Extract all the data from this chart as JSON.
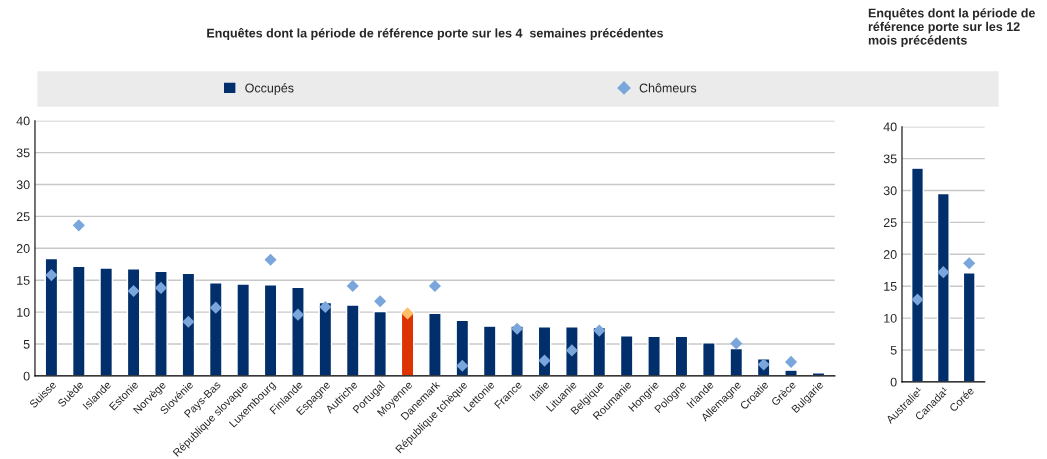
{
  "chart_data": [
    {
      "type": "bar",
      "title": "Enquêtes dont la période de référence porte sur les 4  semaines précédentes",
      "categories": [
        "Suisse",
        "Suède",
        "Islande",
        "Estonie",
        "Norvège",
        "Slovénie",
        "Pays-Bas",
        "République slovaque",
        "Luxembourg",
        "Finlande",
        "Espagne",
        "Autriche",
        "Portugal",
        "Moyenne",
        "Danemark",
        "République tchèque",
        "Lettonie",
        "France",
        "Italie",
        "Lituanie",
        "Belgique",
        "Roumanie",
        "Hongrie",
        "Pologne",
        "Irlande",
        "Allemagne",
        "Croatie",
        "Grèce",
        "Bulgarie"
      ],
      "series": [
        {
          "name": "Occupés",
          "type": "bar",
          "color": "#002f6c",
          "colors": [
            "#002f6c",
            "#002f6c",
            "#002f6c",
            "#002f6c",
            "#002f6c",
            "#002f6c",
            "#002f6c",
            "#002f6c",
            "#002f6c",
            "#002f6c",
            "#002f6c",
            "#002f6c",
            "#002f6c",
            "#dd3300",
            "#002f6c",
            "#002f6c",
            "#002f6c",
            "#002f6c",
            "#002f6c",
            "#002f6c",
            "#002f6c",
            "#002f6c",
            "#002f6c",
            "#002f6c",
            "#002f6c",
            "#002f6c",
            "#002f6c",
            "#002f6c",
            "#002f6c"
          ],
          "values": [
            18.4,
            17.2,
            16.9,
            16.8,
            16.4,
            16.1,
            14.6,
            14.4,
            14.3,
            13.9,
            11.5,
            11.1,
            10.1,
            10.0,
            9.8,
            8.7,
            7.8,
            7.8,
            7.7,
            7.7,
            7.6,
            6.3,
            6.2,
            6.2,
            5.2,
            4.3,
            2.7,
            0.9,
            0.5
          ]
        },
        {
          "name": "Chômeurs",
          "type": "scatter",
          "marker": "diamond",
          "color": "#7aa6db",
          "colors": [
            "#7aa6db",
            "#7aa6db",
            "#7aa6db",
            "#7aa6db",
            "#7aa6db",
            "#7aa6db",
            "#7aa6db",
            "#7aa6db",
            "#7aa6db",
            "#7aa6db",
            "#7aa6db",
            "#7aa6db",
            "#7aa6db",
            "#ffbf66",
            "#7aa6db",
            "#7aa6db",
            "#7aa6db",
            "#7aa6db",
            "#7aa6db",
            "#7aa6db",
            "#7aa6db",
            "#7aa6db",
            "#7aa6db",
            "#7aa6db",
            "#7aa6db",
            "#7aa6db",
            "#7aa6db",
            "#7aa6db",
            "#7aa6db"
          ],
          "values": [
            15.8,
            23.6,
            null,
            13.3,
            13.8,
            8.5,
            10.7,
            null,
            18.2,
            9.6,
            10.8,
            14.1,
            11.7,
            9.8,
            14.1,
            1.6,
            null,
            7.4,
            2.4,
            4.0,
            7.1,
            null,
            null,
            null,
            null,
            5.1,
            1.8,
            2.2,
            null
          ]
        }
      ],
      "ylim": [
        0,
        40
      ],
      "yticks": [
        0,
        5,
        10,
        15,
        20,
        25,
        30,
        35,
        40
      ],
      "grid": "y",
      "legend": "top"
    },
    {
      "type": "bar",
      "title": "Enquêtes dont la période de référence porte sur les 12 mois précédents",
      "categories": [
        "Australie¹",
        "Canada¹",
        "Corée"
      ],
      "series": [
        {
          "type": "bar",
          "color": "#002f6c",
          "values": [
            33.5,
            29.5,
            17.1
          ]
        },
        {
          "type": "scatter",
          "marker": "diamond",
          "color": "#7aa6db",
          "values": [
            12.9,
            17.2,
            18.6
          ]
        }
      ],
      "ylim": [
        0,
        40
      ],
      "yticks": [
        0,
        5,
        10,
        15,
        20,
        25,
        30,
        35,
        40
      ],
      "grid": "y"
    }
  ]
}
